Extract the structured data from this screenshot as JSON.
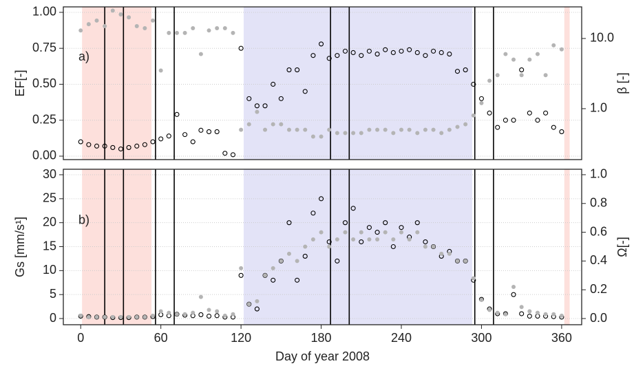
{
  "chart_data": [
    {
      "type": "scatter",
      "panel_label": "a)",
      "ylabel": "EF[-]",
      "y2label": "β [-]",
      "y2log": true,
      "xlim": [
        -13,
        375
      ],
      "ylim": [
        -0.024,
        1.038
      ],
      "y2lim": [
        0.188,
        28.2
      ],
      "yticks": [
        {
          "value": 0,
          "label": "0.00"
        },
        {
          "value": 0.25,
          "label": "0.25"
        },
        {
          "value": 0.5,
          "label": "0.50"
        },
        {
          "value": 0.75,
          "label": "0.75"
        },
        {
          "value": 1,
          "label": "1.00"
        }
      ],
      "y2ticks": [
        {
          "value": 1,
          "label": "1.0"
        },
        {
          "value": 10,
          "label": "10.0"
        }
      ],
      "grid": true,
      "shaded_periods": [
        {
          "start": 1,
          "end": 53,
          "color": "#fde0dc"
        },
        {
          "start": 122,
          "end": 293,
          "color": "#e3e3f7"
        },
        {
          "start": 362,
          "end": 366,
          "color": "#fde0dc"
        }
      ],
      "vlines": [
        18,
        32,
        56,
        70,
        187,
        201,
        295,
        309
      ],
      "x": [
        0,
        6,
        12,
        18,
        24,
        30,
        36,
        42,
        48,
        54,
        60,
        66,
        72,
        78,
        84,
        90,
        96,
        102,
        108,
        114,
        120,
        126,
        132,
        138,
        144,
        150,
        156,
        162,
        168,
        174,
        180,
        186,
        192,
        198,
        204,
        210,
        216,
        222,
        228,
        234,
        240,
        246,
        252,
        258,
        264,
        270,
        276,
        282,
        288,
        294,
        300,
        306,
        312,
        318,
        324,
        330,
        336,
        342,
        348,
        354,
        360
      ],
      "series": [
        {
          "name": "EF",
          "color": "#000000",
          "axis": "y",
          "values": [
            0.1,
            0.08,
            0.07,
            0.07,
            0.06,
            0.05,
            0.06,
            0.07,
            0.08,
            0.1,
            0.12,
            0.14,
            0.29,
            0.15,
            0.1,
            0.18,
            0.17,
            0.17,
            0.02,
            0.01,
            0.75,
            0.4,
            0.35,
            0.35,
            0.5,
            0.4,
            0.6,
            0.6,
            0.45,
            0.7,
            0.78,
            0.68,
            0.7,
            0.73,
            0.72,
            0.7,
            0.73,
            0.71,
            0.74,
            0.72,
            0.73,
            0.74,
            0.72,
            0.7,
            0.73,
            0.72,
            0.71,
            0.59,
            0.6,
            0.5,
            0.4,
            0.3,
            0.2,
            0.25,
            0.25,
            0.6,
            0.3,
            0.25,
            0.3,
            0.2,
            0.17
          ]
        },
        {
          "name": "β",
          "color": "#b4b4b4",
          "axis": "y2",
          "values": [
            13,
            16,
            18,
            15,
            25,
            22,
            20,
            15,
            14,
            18,
            3.5,
            12,
            12,
            12,
            14,
            6,
            13,
            14,
            14,
            12,
            0.5,
            0.6,
            0.9,
            0.5,
            0.6,
            0.6,
            0.5,
            0.5,
            0.5,
            0.4,
            0.4,
            0.5,
            0.45,
            0.45,
            0.45,
            0.45,
            0.5,
            0.5,
            0.5,
            0.45,
            0.5,
            0.5,
            0.45,
            0.5,
            0.5,
            0.45,
            0.5,
            0.55,
            0.6,
            0.8,
            1.2,
            2.5,
            3,
            6,
            5,
            3,
            5,
            6,
            3,
            8,
            7
          ]
        }
      ]
    },
    {
      "type": "scatter",
      "panel_label": "b)",
      "ylabel": "Gs  [mm/s¹]",
      "y2label": "Ω[-]",
      "y2log": false,
      "xlim": [
        -13,
        375
      ],
      "ylim": [
        -1.29,
        31.15
      ],
      "y2lim": [
        -0.043,
        1.038
      ],
      "yticks": [
        0,
        5,
        10,
        15,
        20,
        25,
        30
      ],
      "y2ticks": [
        {
          "value": 0,
          "label": "0.0"
        },
        {
          "value": 0.2,
          "label": "0.2"
        },
        {
          "value": 0.4,
          "label": "0.4"
        },
        {
          "value": 0.6,
          "label": "0.6"
        },
        {
          "value": 0.8,
          "label": "0.8"
        },
        {
          "value": 1,
          "label": "1.0"
        }
      ],
      "xticks": [
        0,
        60,
        120,
        180,
        240,
        300,
        360
      ],
      "xlabel": "Day of year 2008",
      "grid": true,
      "shaded_periods": [
        {
          "start": 1,
          "end": 53,
          "color": "#fde0dc"
        },
        {
          "start": 122,
          "end": 293,
          "color": "#e3e3f7"
        },
        {
          "start": 362,
          "end": 366,
          "color": "#fde0dc"
        }
      ],
      "vlines": [
        18,
        32,
        56,
        70,
        187,
        201,
        295,
        309
      ],
      "x": [
        0,
        6,
        12,
        18,
        24,
        30,
        36,
        42,
        48,
        54,
        60,
        66,
        72,
        78,
        84,
        90,
        96,
        102,
        108,
        114,
        120,
        126,
        132,
        138,
        144,
        150,
        156,
        162,
        168,
        174,
        180,
        186,
        192,
        198,
        204,
        210,
        216,
        222,
        228,
        234,
        240,
        246,
        252,
        258,
        264,
        270,
        276,
        282,
        288,
        294,
        300,
        306,
        312,
        318,
        324,
        330,
        336,
        342,
        348,
        354,
        360
      ],
      "series": [
        {
          "name": "Gs",
          "color": "#000000",
          "axis": "y",
          "values": [
            0.5,
            0.4,
            0.3,
            0.3,
            0.2,
            0.2,
            0.2,
            0.3,
            0.3,
            0.4,
            0.8,
            0.6,
            0.9,
            0.7,
            0.6,
            0.8,
            0.5,
            0.6,
            0.3,
            0.3,
            9,
            3,
            2,
            9,
            8,
            12,
            20,
            8,
            13,
            22,
            25,
            16,
            12,
            20,
            23,
            16,
            19,
            18,
            20,
            15,
            19,
            17,
            20,
            16,
            15,
            13,
            14,
            12,
            12,
            8,
            4,
            2,
            1,
            1,
            5,
            1,
            0.5,
            0.5,
            0.5,
            0.4,
            0.3
          ]
        },
        {
          "name": "Ω",
          "color": "#b4b4b4",
          "axis": "y2",
          "values": [
            0.02,
            0.01,
            0.01,
            0.01,
            0.01,
            0.01,
            0.01,
            0.01,
            0.01,
            0.02,
            0.05,
            0.04,
            0.03,
            0.03,
            0.04,
            0.15,
            0.06,
            0.05,
            0.02,
            0.03,
            0.35,
            0.1,
            0.12,
            0.3,
            0.35,
            0.4,
            0.45,
            0.4,
            0.5,
            0.55,
            0.6,
            0.5,
            0.55,
            0.6,
            0.55,
            0.6,
            0.55,
            0.55,
            0.6,
            0.55,
            0.6,
            0.55,
            0.6,
            0.5,
            0.5,
            0.45,
            0.45,
            0.4,
            0.4,
            0.28,
            0.13,
            0.06,
            0.04,
            0.03,
            0.22,
            0.08,
            0.05,
            0.04,
            0.03,
            0.03,
            0.02
          ]
        }
      ]
    }
  ]
}
